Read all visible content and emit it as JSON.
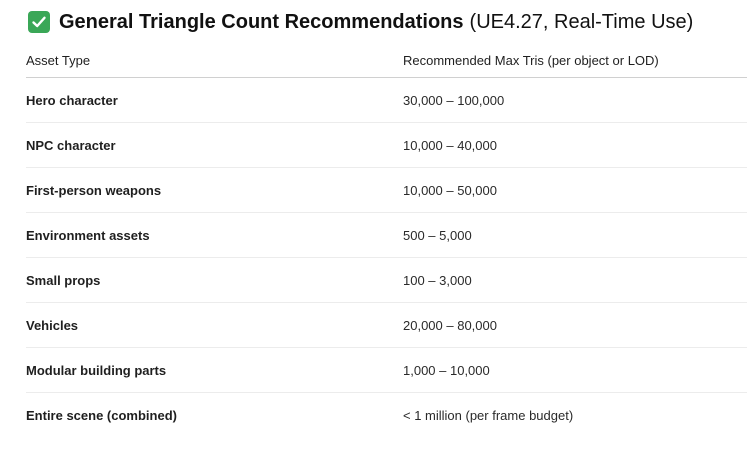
{
  "heading": {
    "title_bold": "General Triangle Count Recommendations",
    "title_rest": "(UE4.27, Real-Time Use)",
    "icon": "check-mark-icon",
    "icon_color": "#3aa757"
  },
  "table": {
    "headers": [
      "Asset Type",
      "Recommended Max Tris (per object or LOD)"
    ],
    "rows": [
      {
        "asset": "Hero character",
        "tris": "30,000 – 100,000"
      },
      {
        "asset": "NPC character",
        "tris": "10,000 – 40,000"
      },
      {
        "asset": "First-person weapons",
        "tris": "10,000 – 50,000"
      },
      {
        "asset": "Environment assets",
        "tris": "500 – 5,000"
      },
      {
        "asset": "Small props",
        "tris": "100 – 3,000"
      },
      {
        "asset": "Vehicles",
        "tris": "20,000 – 80,000"
      },
      {
        "asset": "Modular building parts",
        "tris": "1,000 – 10,000"
      },
      {
        "asset": "Entire scene (combined)",
        "tris": "< 1 million (per frame budget)"
      }
    ]
  }
}
